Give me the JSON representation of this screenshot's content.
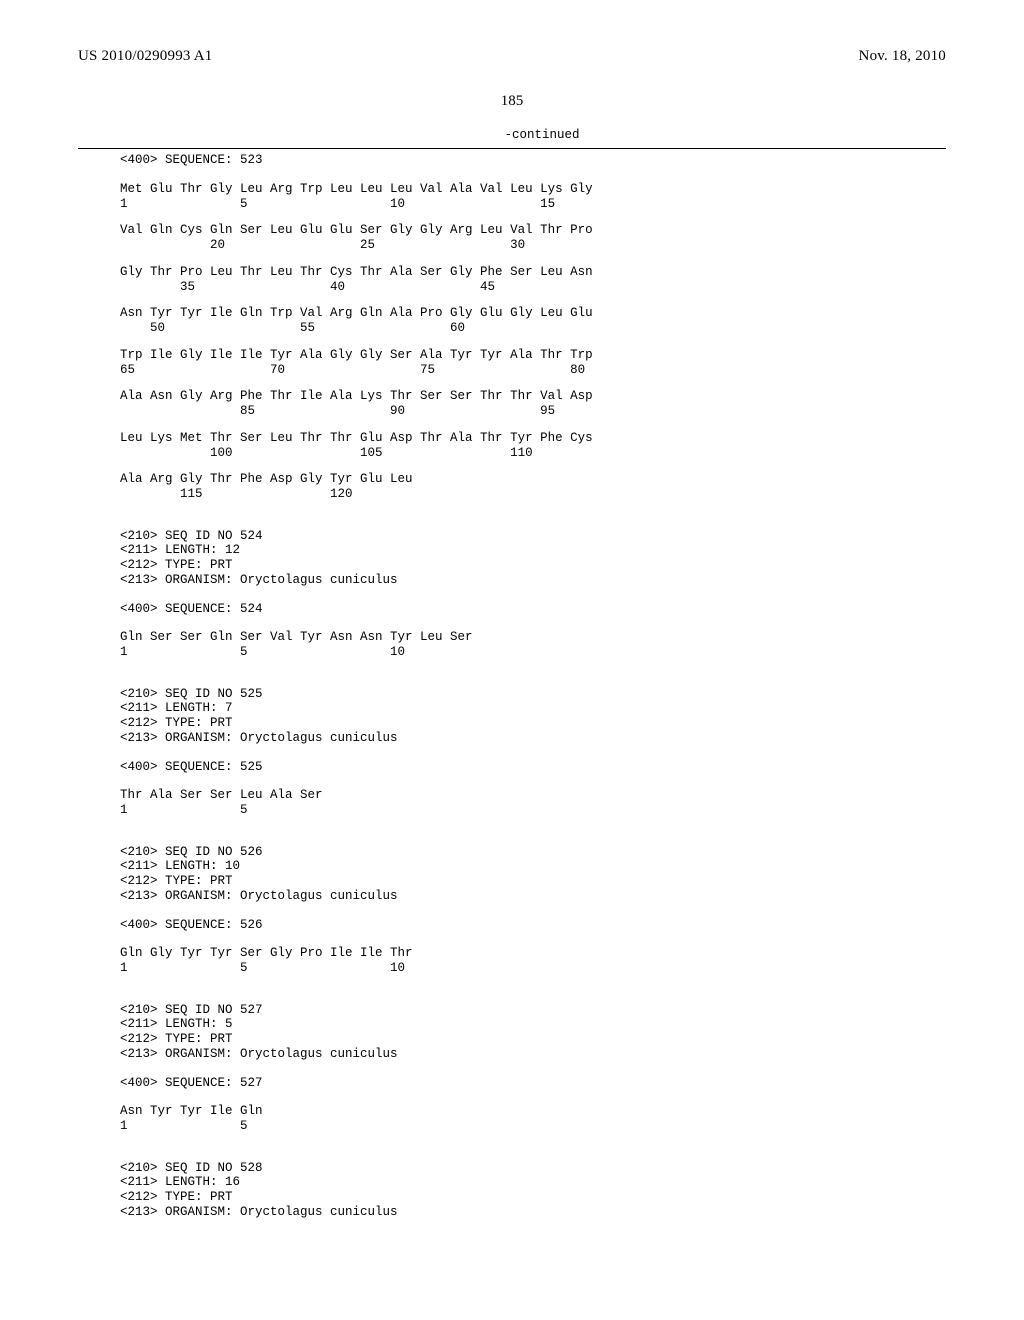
{
  "header": {
    "pub_no": "US 2010/0290993 A1",
    "date": "Nov. 18, 2010"
  },
  "page_number": "185",
  "continued": "-continued",
  "seq523": {
    "header": "<400> SEQUENCE: 523",
    "rows": [
      {
        "aa": "Met Glu Thr Gly Leu Arg Trp Leu Leu Leu Val Ala Val Leu Lys Gly",
        "nums": "1               5                   10                  15"
      },
      {
        "aa": "Val Gln Cys Gln Ser Leu Glu Glu Ser Gly Gly Arg Leu Val Thr Pro",
        "nums": "            20                  25                  30"
      },
      {
        "aa": "Gly Thr Pro Leu Thr Leu Thr Cys Thr Ala Ser Gly Phe Ser Leu Asn",
        "nums": "        35                  40                  45"
      },
      {
        "aa": "Asn Tyr Tyr Ile Gln Trp Val Arg Gln Ala Pro Gly Glu Gly Leu Glu",
        "nums": "    50                  55                  60"
      },
      {
        "aa": "Trp Ile Gly Ile Ile Tyr Ala Gly Gly Ser Ala Tyr Tyr Ala Thr Trp",
        "nums": "65                  70                  75                  80"
      },
      {
        "aa": "Ala Asn Gly Arg Phe Thr Ile Ala Lys Thr Ser Ser Thr Thr Val Asp",
        "nums": "                85                  90                  95"
      },
      {
        "aa": "Leu Lys Met Thr Ser Leu Thr Thr Glu Asp Thr Ala Thr Tyr Phe Cys",
        "nums": "            100                 105                 110"
      },
      {
        "aa": "Ala Arg Gly Thr Phe Asp Gly Tyr Glu Leu",
        "nums": "        115                 120"
      }
    ]
  },
  "seq524": {
    "headers": [
      "<210> SEQ ID NO 524",
      "<211> LENGTH: 12",
      "<212> TYPE: PRT",
      "<213> ORGANISM: Oryctolagus cuniculus"
    ],
    "seq_header": "<400> SEQUENCE: 524",
    "row": {
      "aa": "Gln Ser Ser Gln Ser Val Tyr Asn Asn Tyr Leu Ser",
      "nums": "1               5                   10"
    }
  },
  "seq525": {
    "headers": [
      "<210> SEQ ID NO 525",
      "<211> LENGTH: 7",
      "<212> TYPE: PRT",
      "<213> ORGANISM: Oryctolagus cuniculus"
    ],
    "seq_header": "<400> SEQUENCE: 525",
    "row": {
      "aa": "Thr Ala Ser Ser Leu Ala Ser",
      "nums": "1               5"
    }
  },
  "seq526": {
    "headers": [
      "<210> SEQ ID NO 526",
      "<211> LENGTH: 10",
      "<212> TYPE: PRT",
      "<213> ORGANISM: Oryctolagus cuniculus"
    ],
    "seq_header": "<400> SEQUENCE: 526",
    "row": {
      "aa": "Gln Gly Tyr Tyr Ser Gly Pro Ile Ile Thr",
      "nums": "1               5                   10"
    }
  },
  "seq527": {
    "headers": [
      "<210> SEQ ID NO 527",
      "<211> LENGTH: 5",
      "<212> TYPE: PRT",
      "<213> ORGANISM: Oryctolagus cuniculus"
    ],
    "seq_header": "<400> SEQUENCE: 527",
    "row": {
      "aa": "Asn Tyr Tyr Ile Gln",
      "nums": "1               5"
    }
  },
  "seq528": {
    "headers": [
      "<210> SEQ ID NO 528",
      "<211> LENGTH: 16",
      "<212> TYPE: PRT",
      "<213> ORGANISM: Oryctolagus cuniculus"
    ]
  }
}
